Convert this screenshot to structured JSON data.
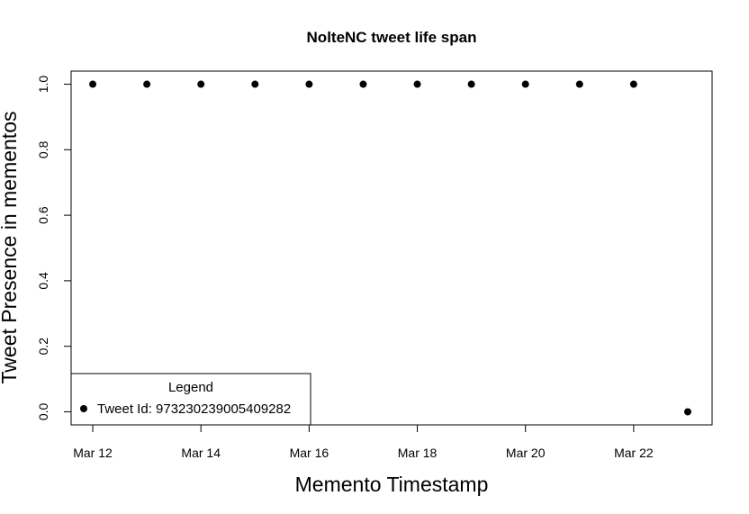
{
  "chart_data": {
    "type": "scatter",
    "title": "NolteNC tweet life span",
    "xlabel": "Memento Timestamp",
    "ylabel": "Tweet Presence in mementos",
    "x_tick_labels": [
      "Mar 12",
      "Mar 14",
      "Mar 16",
      "Mar 18",
      "Mar 20",
      "Mar 22"
    ],
    "y_tick_labels": [
      "0.0",
      "0.2",
      "0.4",
      "0.6",
      "0.8",
      "1.0"
    ],
    "y_ticks": [
      0,
      0.2,
      0.4,
      0.6,
      0.8,
      1.0
    ],
    "x_ticks": [
      "2018-03-12",
      "2018-03-14",
      "2018-03-16",
      "2018-03-18",
      "2018-03-20",
      "2018-03-22"
    ],
    "xlim": [
      "2018-03-11.6",
      "2018-03-23.45"
    ],
    "ylim": [
      -0.04,
      1.04
    ],
    "legend": {
      "title": "Legend",
      "placement": "bottom-left",
      "entries": [
        {
          "label": "Tweet Id: 973230239005409282",
          "marker": "filled-circle"
        }
      ]
    },
    "series": [
      {
        "name": "Tweet Id: 973230239005409282",
        "color": "#000000",
        "x": [
          "2018-03-12",
          "2018-03-13",
          "2018-03-14",
          "2018-03-15",
          "2018-03-16",
          "2018-03-17",
          "2018-03-18",
          "2018-03-19",
          "2018-03-20",
          "2018-03-21",
          "2018-03-22",
          "2018-03-23"
        ],
        "y": [
          1,
          1,
          1,
          1,
          1,
          1,
          1,
          1,
          1,
          1,
          1,
          0
        ]
      }
    ],
    "grid": false
  }
}
